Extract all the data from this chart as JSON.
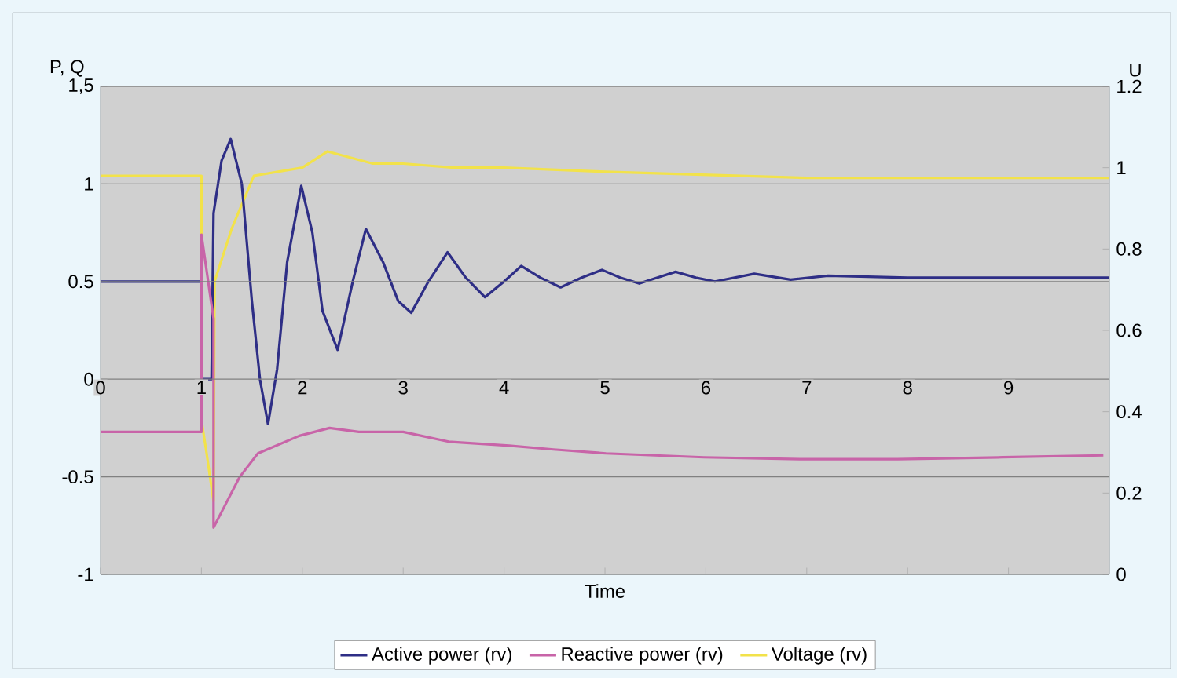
{
  "chart_data": {
    "type": "line",
    "xlabel": "Time",
    "ylabel": "P, Q",
    "y2label": "U",
    "xlim": [
      0,
      10
    ],
    "xticks": [
      0,
      1,
      2,
      3,
      4,
      5,
      6,
      7,
      8,
      9
    ],
    "ylim": [
      -1,
      1.5
    ],
    "yticks": [
      -1,
      -0.5,
      0,
      0.5,
      1,
      {
        "value": 1.5,
        "label": "1,5"
      }
    ],
    "y2lim": [
      0,
      1.2
    ],
    "y2ticks": [
      0,
      0.2,
      0.4,
      0.6,
      0.8,
      1,
      1.2
    ],
    "grid": "y",
    "legend": "bottom",
    "series": [
      {
        "name": "Active power (rv)",
        "color": "#2e2e86",
        "x": [
          0,
          1.0,
          1.0,
          1.1,
          1.12,
          1.2,
          1.29,
          1.4,
          1.5,
          1.58,
          1.66,
          1.75,
          1.85,
          1.99,
          2.1,
          2.2,
          2.35,
          2.5,
          2.63,
          2.8,
          2.95,
          3.08,
          3.25,
          3.44,
          3.62,
          3.81,
          4.0,
          4.17,
          4.36,
          4.56,
          4.77,
          4.97,
          5.15,
          5.34,
          5.52,
          5.7,
          5.9,
          6.09,
          6.48,
          6.84,
          7.21,
          8,
          9,
          10
        ],
        "values": [
          0.5,
          0.5,
          0,
          0,
          0.85,
          1.12,
          1.23,
          1.0,
          0.4,
          0.0,
          -0.23,
          0.05,
          0.6,
          0.99,
          0.75,
          0.35,
          0.15,
          0.5,
          0.77,
          0.6,
          0.4,
          0.34,
          0.5,
          0.65,
          0.52,
          0.42,
          0.5,
          0.58,
          0.52,
          0.47,
          0.52,
          0.56,
          0.52,
          0.49,
          0.52,
          0.55,
          0.52,
          0.5,
          0.54,
          0.51,
          0.53,
          0.52,
          0.52,
          0.52
        ]
      },
      {
        "name": "Reactive power (rv)",
        "color": "#c864a8",
        "x": [
          0,
          1.0,
          1.0,
          1.12,
          1.12,
          1.2,
          1.38,
          1.56,
          1.97,
          2.27,
          2.56,
          3.0,
          3.45,
          4.05,
          4.49,
          5.01,
          5.98,
          6.94,
          7.9,
          8.94,
          9.94
        ],
        "values": [
          -0.27,
          -0.27,
          0.74,
          0.31,
          -0.76,
          -0.68,
          -0.5,
          -0.38,
          -0.29,
          -0.25,
          -0.27,
          -0.27,
          -0.32,
          -0.34,
          -0.36,
          -0.38,
          -0.4,
          -0.41,
          -0.41,
          -0.4,
          -0.39
        ]
      },
      {
        "name": "Voltage (rv)",
        "color": "#f2e24a",
        "axis": "y2",
        "x": [
          0,
          1.0,
          1.0,
          1.05,
          1.12,
          1.13,
          1.3,
          1.52,
          2.0,
          2.25,
          2.7,
          3.0,
          3.5,
          4.0,
          5.0,
          7.0,
          10
        ],
        "values": [
          0.98,
          0.98,
          0.38,
          0.3,
          0.18,
          0.72,
          0.85,
          0.98,
          1.0,
          1.04,
          1.01,
          1.01,
          1.0,
          1.0,
          0.99,
          0.975,
          0.975
        ]
      }
    ]
  }
}
